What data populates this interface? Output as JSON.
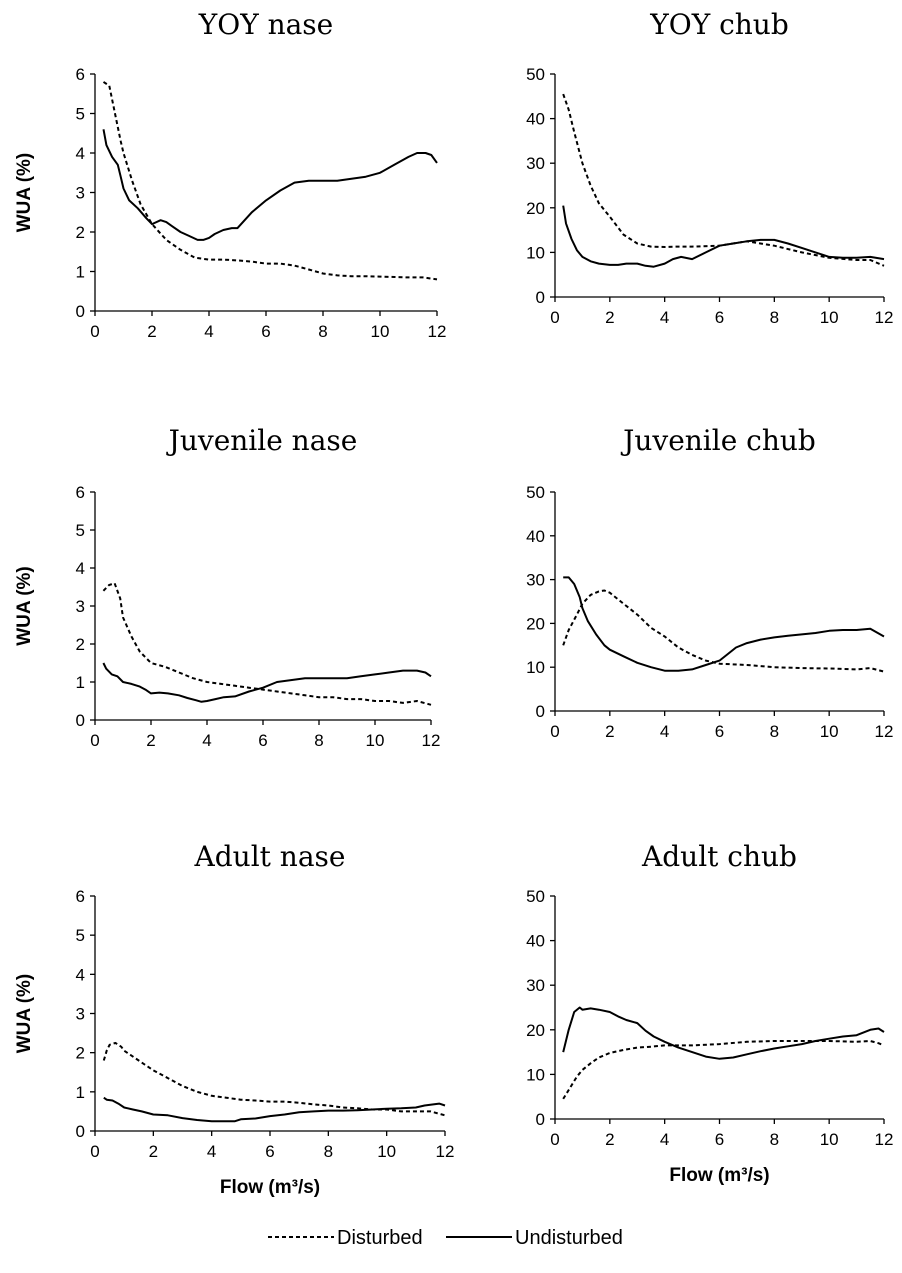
{
  "chart_data": [
    {
      "type": "line",
      "title": "YOY nase",
      "ylabel": "WUA (%)",
      "xlabel": "",
      "xlim": [
        0,
        12
      ],
      "ylim": [
        0,
        6
      ],
      "x_ticks": [
        "0",
        "2",
        "4",
        "6",
        "8",
        "10",
        "12"
      ],
      "y_ticks": [
        "0",
        "1",
        "2",
        "3",
        "4",
        "5",
        "6"
      ],
      "series": [
        {
          "name": "Disturbed",
          "style": "dashed",
          "x": [
            0.3,
            0.5,
            0.7,
            0.9,
            1.0,
            1.3,
            1.6,
            2.0,
            2.5,
            3.0,
            3.5,
            4.0,
            4.5,
            5.0,
            5.5,
            6.0,
            6.5,
            7.0,
            7.5,
            8.0,
            8.5,
            9.0,
            9.5,
            10.0,
            10.5,
            11.0,
            11.5,
            12.0
          ],
          "y": [
            5.8,
            5.7,
            5.0,
            4.3,
            4.0,
            3.3,
            2.7,
            2.2,
            1.8,
            1.55,
            1.35,
            1.3,
            1.3,
            1.28,
            1.25,
            1.2,
            1.2,
            1.15,
            1.05,
            0.95,
            0.9,
            0.88,
            0.88,
            0.87,
            0.86,
            0.85,
            0.85,
            0.8
          ]
        },
        {
          "name": "Undisturbed",
          "style": "solid",
          "x": [
            0.3,
            0.4,
            0.6,
            0.8,
            0.9,
            1.0,
            1.2,
            1.5,
            1.8,
            2.0,
            2.3,
            2.5,
            2.7,
            3.0,
            3.3,
            3.6,
            3.8,
            4.0,
            4.2,
            4.5,
            4.8,
            5.0,
            5.5,
            6.0,
            6.5,
            7.0,
            7.5,
            8.0,
            8.5,
            9.0,
            9.5,
            10.0,
            10.5,
            11.0,
            11.3,
            11.6,
            11.8,
            12.0
          ],
          "y": [
            4.6,
            4.2,
            3.9,
            3.7,
            3.4,
            3.1,
            2.8,
            2.6,
            2.35,
            2.2,
            2.3,
            2.25,
            2.15,
            2.0,
            1.9,
            1.8,
            1.8,
            1.85,
            1.95,
            2.05,
            2.1,
            2.1,
            2.5,
            2.8,
            3.05,
            3.25,
            3.3,
            3.3,
            3.3,
            3.35,
            3.4,
            3.5,
            3.7,
            3.9,
            4.0,
            4.0,
            3.95,
            3.75
          ]
        }
      ]
    },
    {
      "type": "line",
      "title": "YOY chub",
      "ylabel": "",
      "xlabel": "",
      "xlim": [
        0,
        12
      ],
      "ylim": [
        0,
        50
      ],
      "x_ticks": [
        "0",
        "2",
        "4",
        "6",
        "8",
        "10",
        "12"
      ],
      "y_ticks": [
        "0",
        "10",
        "20",
        "30",
        "40",
        "50"
      ],
      "series": [
        {
          "name": "Disturbed",
          "style": "dashed",
          "x": [
            0.3,
            0.5,
            0.7,
            1.0,
            1.3,
            1.6,
            2.0,
            2.5,
            3.0,
            3.5,
            4.0,
            4.5,
            5.0,
            6.0,
            7.0,
            8.0,
            9.0,
            10.0,
            11.0,
            11.5,
            12.0
          ],
          "y": [
            45.5,
            42,
            37,
            30,
            25,
            21,
            18,
            14,
            12,
            11.3,
            11.2,
            11.3,
            11.3,
            11.5,
            12.5,
            11.5,
            10,
            8.8,
            8.3,
            8.3,
            7.0
          ]
        },
        {
          "name": "Undisturbed",
          "style": "solid",
          "x": [
            0.3,
            0.4,
            0.6,
            0.8,
            1.0,
            1.3,
            1.6,
            2.0,
            2.3,
            2.6,
            3.0,
            3.3,
            3.6,
            4.0,
            4.3,
            4.6,
            5.0,
            5.5,
            6.0,
            6.5,
            7.0,
            7.5,
            8.0,
            8.5,
            9.0,
            9.5,
            10.0,
            10.5,
            11.0,
            11.5,
            12.0
          ],
          "y": [
            20.5,
            16.5,
            13,
            10.5,
            9,
            8,
            7.5,
            7.2,
            7.2,
            7.5,
            7.5,
            7.0,
            6.8,
            7.5,
            8.5,
            9.0,
            8.5,
            10,
            11.5,
            12,
            12.5,
            12.8,
            12.8,
            12,
            11,
            10,
            9.0,
            8.8,
            8.8,
            9.0,
            8.5
          ]
        }
      ]
    },
    {
      "type": "line",
      "title": "Juvenile nase",
      "ylabel": "WUA (%)",
      "xlabel": "",
      "xlim": [
        0,
        12
      ],
      "ylim": [
        0,
        6
      ],
      "x_ticks": [
        "0",
        "2",
        "4",
        "6",
        "8",
        "10",
        "12"
      ],
      "y_ticks": [
        "0",
        "1",
        "2",
        "3",
        "4",
        "5",
        "6"
      ],
      "series": [
        {
          "name": "Disturbed",
          "style": "dashed",
          "x": [
            0.3,
            0.5,
            0.7,
            0.9,
            1.0,
            1.3,
            1.6,
            2.0,
            2.5,
            3.0,
            3.5,
            4.0,
            4.5,
            5.0,
            5.5,
            6.0,
            6.5,
            7.0,
            7.5,
            8.0,
            8.5,
            9.0,
            9.5,
            10.0,
            10.5,
            11.0,
            11.5,
            12.0
          ],
          "y": [
            3.4,
            3.55,
            3.6,
            3.2,
            2.7,
            2.2,
            1.8,
            1.5,
            1.4,
            1.25,
            1.1,
            1.0,
            0.95,
            0.9,
            0.85,
            0.8,
            0.75,
            0.7,
            0.65,
            0.6,
            0.6,
            0.55,
            0.55,
            0.5,
            0.5,
            0.45,
            0.5,
            0.4
          ]
        },
        {
          "name": "Undisturbed",
          "style": "solid",
          "x": [
            0.3,
            0.4,
            0.6,
            0.8,
            1.0,
            1.3,
            1.6,
            1.8,
            2.0,
            2.3,
            2.6,
            3.0,
            3.3,
            3.6,
            3.8,
            4.0,
            4.3,
            4.6,
            5.0,
            5.5,
            6.0,
            6.5,
            7.0,
            7.5,
            8.0,
            8.5,
            9.0,
            9.5,
            10.0,
            10.5,
            11.0,
            11.5,
            11.8,
            12.0
          ],
          "y": [
            1.5,
            1.35,
            1.2,
            1.15,
            1.0,
            0.95,
            0.88,
            0.8,
            0.7,
            0.72,
            0.7,
            0.65,
            0.58,
            0.52,
            0.48,
            0.5,
            0.55,
            0.6,
            0.62,
            0.75,
            0.85,
            1.0,
            1.05,
            1.1,
            1.1,
            1.1,
            1.1,
            1.15,
            1.2,
            1.25,
            1.3,
            1.3,
            1.25,
            1.15
          ]
        }
      ]
    },
    {
      "type": "line",
      "title": "Juvenile chub",
      "ylabel": "",
      "xlabel": "",
      "xlim": [
        0,
        12
      ],
      "ylim": [
        0,
        50
      ],
      "x_ticks": [
        "0",
        "2",
        "4",
        "6",
        "8",
        "10",
        "12"
      ],
      "y_ticks": [
        "0",
        "10",
        "20",
        "30",
        "40",
        "50"
      ],
      "series": [
        {
          "name": "Disturbed",
          "style": "dashed",
          "x": [
            0.3,
            0.5,
            0.8,
            1.0,
            1.3,
            1.6,
            1.8,
            2.0,
            2.5,
            3.0,
            3.5,
            4.0,
            4.5,
            5.0,
            5.5,
            6.0,
            7.0,
            8.0,
            9.0,
            10.0,
            11.0,
            11.5,
            12.0
          ],
          "y": [
            15,
            18.5,
            22,
            24.5,
            26.5,
            27.3,
            27.5,
            27,
            24.5,
            22,
            19,
            17,
            14.5,
            12.8,
            11.5,
            10.8,
            10.5,
            10.0,
            9.8,
            9.7,
            9.5,
            9.8,
            9.0
          ]
        },
        {
          "name": "Undisturbed",
          "style": "solid",
          "x": [
            0.3,
            0.5,
            0.7,
            0.9,
            1.0,
            1.2,
            1.5,
            1.8,
            2.0,
            2.5,
            3.0,
            3.5,
            4.0,
            4.5,
            5.0,
            5.5,
            6.0,
            6.3,
            6.6,
            7.0,
            7.5,
            8.0,
            8.5,
            9.0,
            9.5,
            10.0,
            10.5,
            11.0,
            11.5,
            12.0
          ],
          "y": [
            30.5,
            30.5,
            29,
            26,
            23.5,
            20.5,
            17.5,
            15,
            14,
            12.5,
            11,
            10,
            9.2,
            9.2,
            9.5,
            10.5,
            11.5,
            13,
            14.5,
            15.5,
            16.3,
            16.8,
            17.2,
            17.5,
            17.8,
            18.3,
            18.5,
            18.5,
            18.8,
            17.0
          ]
        }
      ]
    },
    {
      "type": "line",
      "title": "Adult nase",
      "ylabel": "WUA (%)",
      "xlabel": "Flow (m³/s)",
      "xlim": [
        0,
        12
      ],
      "ylim": [
        0,
        6
      ],
      "x_ticks": [
        "0",
        "2",
        "4",
        "6",
        "8",
        "10",
        "12"
      ],
      "y_ticks": [
        "0",
        "1",
        "2",
        "3",
        "4",
        "5",
        "6"
      ],
      "series": [
        {
          "name": "Disturbed",
          "style": "dashed",
          "x": [
            0.3,
            0.4,
            0.5,
            0.7,
            0.9,
            1.0,
            1.3,
            1.6,
            2.0,
            2.5,
            3.0,
            3.5,
            4.0,
            4.5,
            5.0,
            5.5,
            6.0,
            6.5,
            7.0,
            7.5,
            8.0,
            8.5,
            9.0,
            9.5,
            10.0,
            10.5,
            11.0,
            11.5,
            12.0
          ],
          "y": [
            1.8,
            2.05,
            2.2,
            2.25,
            2.15,
            2.05,
            1.9,
            1.75,
            1.55,
            1.35,
            1.15,
            1.0,
            0.9,
            0.85,
            0.8,
            0.78,
            0.75,
            0.75,
            0.72,
            0.68,
            0.65,
            0.6,
            0.58,
            0.55,
            0.55,
            0.5,
            0.5,
            0.5,
            0.4
          ]
        },
        {
          "name": "Undisturbed",
          "style": "solid",
          "x": [
            0.3,
            0.4,
            0.6,
            0.8,
            1.0,
            1.3,
            1.6,
            2.0,
            2.5,
            3.0,
            3.5,
            4.0,
            4.5,
            4.8,
            5.0,
            5.5,
            6.0,
            6.5,
            7.0,
            7.5,
            8.0,
            8.5,
            9.0,
            9.5,
            10.0,
            10.5,
            11.0,
            11.3,
            11.6,
            11.8,
            12.0
          ],
          "y": [
            0.85,
            0.8,
            0.78,
            0.7,
            0.6,
            0.55,
            0.5,
            0.42,
            0.4,
            0.33,
            0.28,
            0.25,
            0.25,
            0.25,
            0.3,
            0.32,
            0.38,
            0.42,
            0.48,
            0.5,
            0.52,
            0.52,
            0.53,
            0.55,
            0.57,
            0.58,
            0.6,
            0.65,
            0.68,
            0.7,
            0.65
          ]
        }
      ]
    },
    {
      "type": "line",
      "title": "Adult chub",
      "ylabel": "",
      "xlabel": "Flow (m³/s)",
      "xlim": [
        0,
        12
      ],
      "ylim": [
        0,
        50
      ],
      "x_ticks": [
        "0",
        "2",
        "4",
        "6",
        "8",
        "10",
        "12"
      ],
      "y_ticks": [
        "0",
        "10",
        "20",
        "30",
        "40",
        "50"
      ],
      "series": [
        {
          "name": "Disturbed",
          "style": "dashed",
          "x": [
            0.3,
            0.5,
            0.8,
            1.0,
            1.3,
            1.6,
            2.0,
            2.5,
            3.0,
            3.5,
            4.0,
            5.0,
            6.0,
            7.0,
            8.0,
            9.0,
            10.0,
            11.0,
            11.5,
            11.8,
            12.0
          ],
          "y": [
            4.5,
            6.5,
            9.5,
            11,
            12.5,
            13.8,
            14.8,
            15.5,
            16,
            16.2,
            16.5,
            16.5,
            16.8,
            17.3,
            17.5,
            17.5,
            17.5,
            17.3,
            17.5,
            17.0,
            16.5
          ]
        },
        {
          "name": "Undisturbed",
          "style": "solid",
          "x": [
            0.3,
            0.5,
            0.7,
            0.9,
            1.0,
            1.3,
            1.6,
            2.0,
            2.3,
            2.6,
            3.0,
            3.3,
            3.6,
            4.0,
            4.5,
            5.0,
            5.5,
            6.0,
            6.5,
            7.0,
            7.5,
            8.0,
            8.5,
            9.0,
            9.5,
            10.0,
            10.5,
            11.0,
            11.5,
            11.8,
            12.0
          ],
          "y": [
            15,
            20,
            24,
            25,
            24.5,
            24.8,
            24.5,
            24,
            23,
            22.2,
            21.5,
            19.8,
            18.5,
            17.3,
            16,
            15,
            14,
            13.5,
            13.8,
            14.5,
            15.2,
            15.8,
            16.3,
            16.8,
            17.5,
            18,
            18.5,
            18.8,
            20.0,
            20.3,
            19.5
          ]
        }
      ]
    }
  ],
  "legend": {
    "position": "bottom-center",
    "items": [
      {
        "label": "Disturbed",
        "style": "dashed"
      },
      {
        "label": "Undisturbed",
        "style": "solid"
      }
    ]
  }
}
